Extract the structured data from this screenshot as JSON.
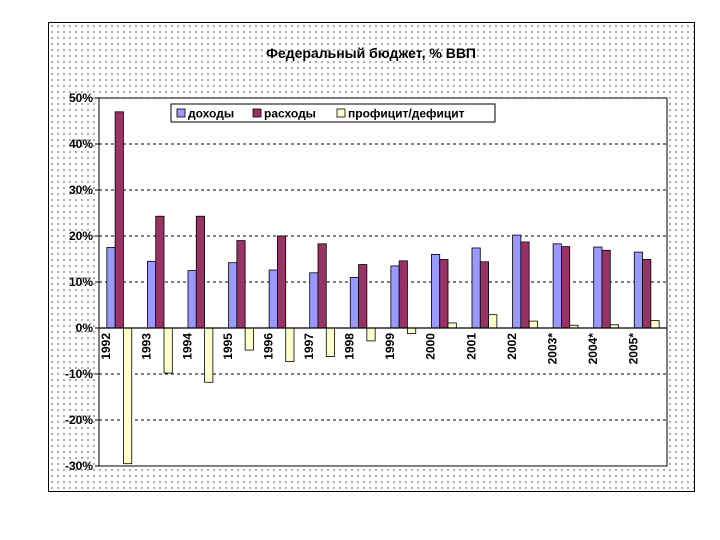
{
  "chart_data": {
    "type": "bar",
    "title": "Федеральный бюджет, % ВВП",
    "categories": [
      "1992",
      "1993",
      "1994",
      "1995",
      "1996",
      "1997",
      "1998",
      "1999",
      "2000",
      "2001",
      "2002",
      "2003*",
      "2004*",
      "2005*"
    ],
    "series": [
      {
        "name": "доходы",
        "color": "#9999ff",
        "values": [
          17.5,
          14.5,
          12.5,
          14.2,
          12.6,
          12.0,
          11.0,
          13.5,
          16.0,
          17.4,
          20.2,
          18.3,
          17.6,
          16.5
        ]
      },
      {
        "name": "расходы",
        "color": "#993366",
        "values": [
          47.0,
          24.3,
          24.3,
          19.0,
          20.0,
          18.3,
          13.8,
          14.6,
          14.9,
          14.4,
          18.7,
          17.7,
          16.9,
          14.9
        ]
      },
      {
        "name": "профицит/дефицит",
        "color": "#ffffcc",
        "values": [
          -29.5,
          -9.8,
          -11.8,
          -4.8,
          -7.3,
          -6.2,
          -2.8,
          -1.2,
          1.1,
          2.9,
          1.5,
          0.6,
          0.7,
          1.6
        ]
      }
    ],
    "ylim": [
      -30,
      50
    ],
    "yticks": [
      -30,
      -20,
      -10,
      0,
      10,
      20,
      30,
      40,
      50
    ],
    "ytick_labels": [
      "-30%",
      "-20%",
      "-10%",
      "0%",
      "10%",
      "20%",
      "30%",
      "40%",
      "50%"
    ],
    "grid": true,
    "legend_position": "top"
  }
}
